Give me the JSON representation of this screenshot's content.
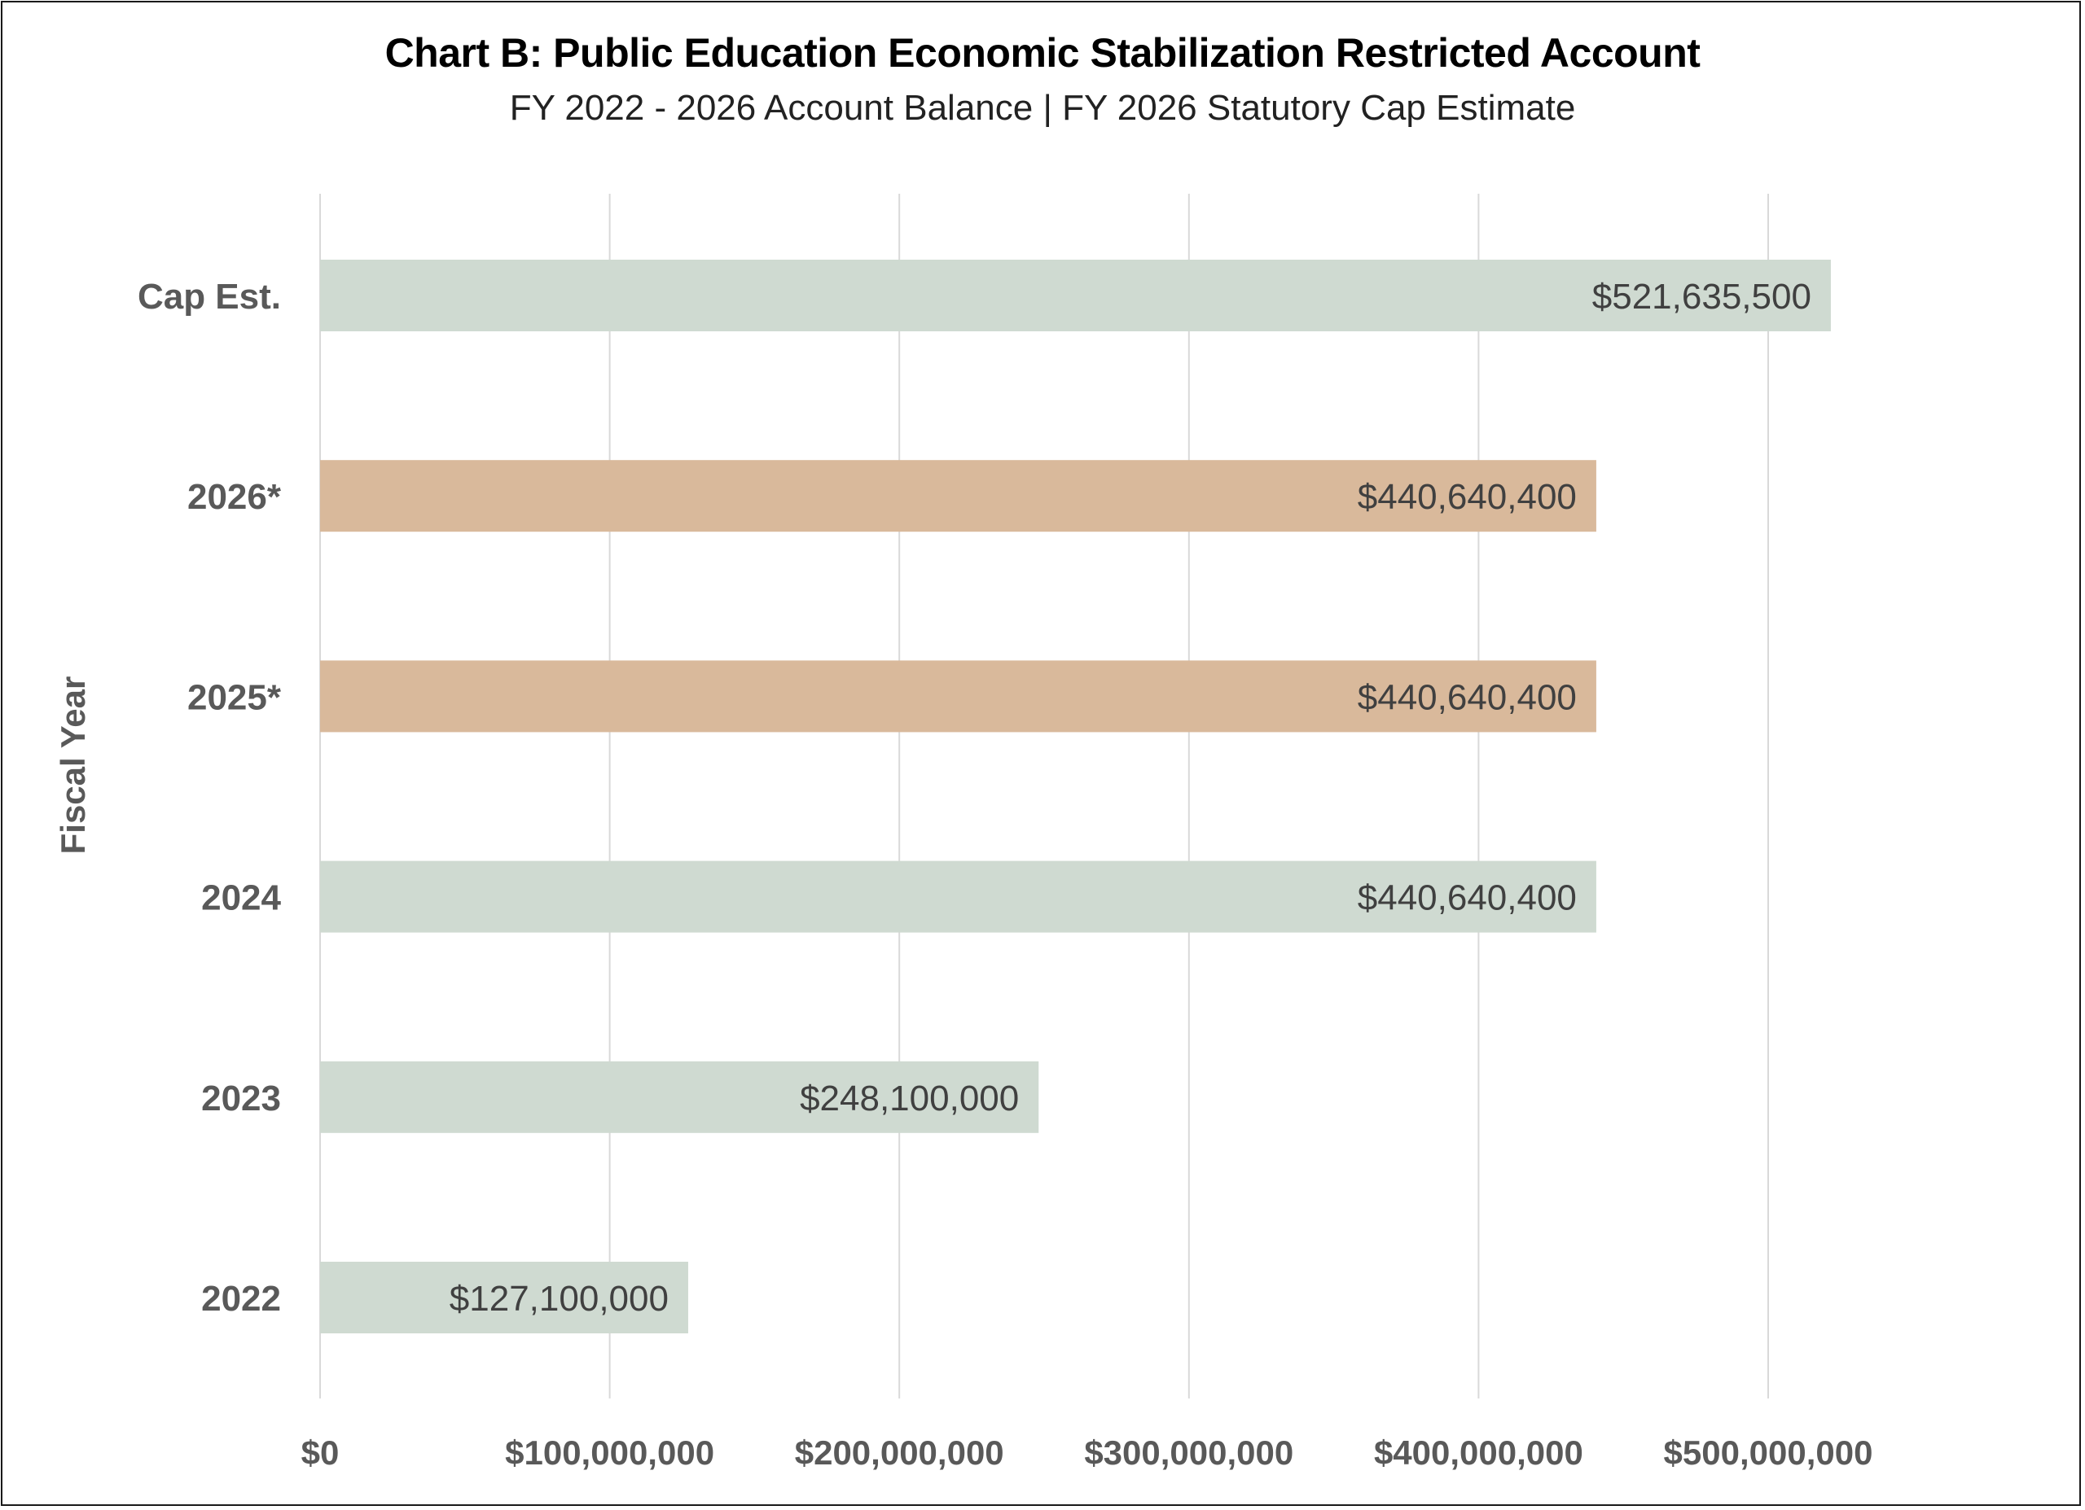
{
  "chart_data": {
    "type": "bar",
    "orientation": "horizontal",
    "title": "Chart B: Public Education Economic Stabilization Restricted Account",
    "subtitle": "FY 2022 - 2026 Account Balance | FY 2026 Statutory Cap Estimate",
    "ylabel": "Fiscal Year",
    "xlabel": "",
    "categories": [
      "Cap Est.",
      "2026*",
      "2025*",
      "2024",
      "2023",
      "2022"
    ],
    "values": [
      521635500,
      440640400,
      440640400,
      440640400,
      248100000,
      127100000
    ],
    "data_labels": [
      "$521,635,500",
      "$440,640,400",
      "$440,640,400",
      "$440,640,400",
      "$248,100,000",
      "$127,100,000"
    ],
    "bar_colors": [
      "#cfdad1",
      "#d9b99b",
      "#d9b99b",
      "#cfdad1",
      "#cfdad1",
      "#cfdad1"
    ],
    "xlim": [
      0,
      500000000
    ],
    "x_ticks": [
      0,
      100000000,
      200000000,
      300000000,
      400000000,
      500000000
    ],
    "x_tick_labels": [
      "$0",
      "$100,000,000",
      "$200,000,000",
      "$300,000,000",
      "$400,000,000",
      "$500,000,000"
    ],
    "grid": "vertical",
    "legend": "none"
  },
  "colors": {
    "balance": "#cfdad1",
    "projected": "#d9b99b",
    "gridline": "#d9d9d9",
    "axis_text": "#595959"
  }
}
